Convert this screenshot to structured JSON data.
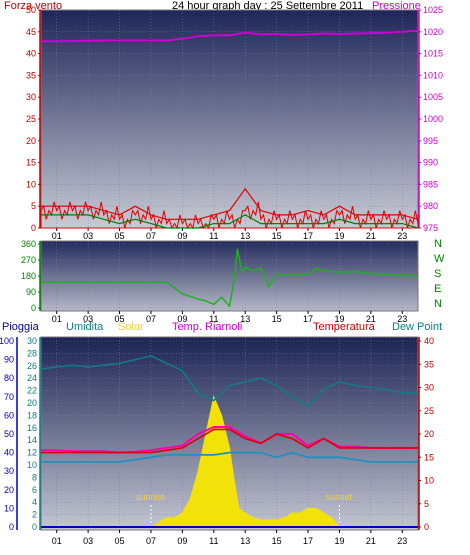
{
  "colors": {
    "frame": "#8a8f9a",
    "bg_top": "#232a5a",
    "bg_bottom": "#c9cbd4",
    "red_axis": "#c00000",
    "teal_axis": "#0a7e86",
    "magenta": "#d000d0",
    "wind_avg": "#e00000",
    "gust": "#008000",
    "direction": "#20b020",
    "humidity": "#127a86",
    "solar": "#f2e20a",
    "temp": "#e00000",
    "dewpoint": "#2090c0",
    "riarnoli": "#ff00aa",
    "rain": "#0000c0",
    "sunrise_label": "#f0d040"
  },
  "top_panel": {
    "left_label": "Forza vento",
    "title": "24 hour graph day : 25 Settembre 2011",
    "right_label": "Pressione"
  },
  "direction_panel": {
    "compass": [
      "N",
      "W",
      "S",
      "E",
      "N"
    ]
  },
  "bottom_panel": {
    "labels": {
      "rain": "Pioggia",
      "humidity": "Umidita",
      "solar": "Solar",
      "riarnoli": "Temp. Riarnoli",
      "temperature": "Temperatura",
      "dewpoint": "Dew Point"
    },
    "sunrise": "sunrise",
    "sunset": "sunset"
  },
  "chart_data": [
    {
      "type": "line",
      "title": "24 hour graph day : 25 Settembre 2011",
      "x_ticks": [
        "01",
        "03",
        "05",
        "07",
        "09",
        "11",
        "13",
        "15",
        "17",
        "19",
        "21",
        "23"
      ],
      "xlim": [
        0,
        24
      ],
      "left_axis": {
        "label": "Forza vento",
        "ticks": [
          0,
          5,
          10,
          15,
          20,
          25,
          30,
          35,
          40,
          45,
          50
        ],
        "lim": [
          0,
          50
        ]
      },
      "right_axis": {
        "label": "Pressione",
        "ticks": [
          975,
          980,
          985,
          990,
          995,
          1000,
          1005,
          1010,
          1015,
          1020,
          1025
        ],
        "lim": [
          975,
          1025
        ]
      },
      "series": [
        {
          "name": "Pressione",
          "axis": "right",
          "x": [
            0,
            2,
            4,
            6,
            8,
            9,
            10,
            11,
            12,
            13,
            14,
            15,
            16,
            17,
            18,
            19,
            20,
            21,
            22,
            23,
            24
          ],
          "values": [
            1017.8,
            1017.9,
            1018.0,
            1018.0,
            1018.0,
            1018.4,
            1019.0,
            1019.2,
            1019.2,
            1019.8,
            1019.4,
            1019.5,
            1019.3,
            1019.4,
            1019.6,
            1019.5,
            1019.6,
            1019.7,
            1019.8,
            1020.0,
            1020.3
          ]
        },
        {
          "x": [
            0,
            1,
            2,
            3,
            4,
            5,
            6,
            7,
            8,
            9,
            10,
            11,
            12,
            13,
            14,
            15,
            16,
            17,
            18,
            19,
            20,
            21,
            22,
            23,
            24
          ],
          "values": [
            4,
            4,
            4,
            4,
            3,
            2,
            3,
            2,
            1,
            1,
            1,
            2,
            2,
            4,
            2,
            2,
            2,
            2,
            2,
            3,
            2,
            2,
            2,
            2,
            1
          ]
        },
        {
          "x": [
            0,
            1,
            2,
            3,
            4,
            5,
            6,
            7,
            8,
            9,
            10,
            11,
            12,
            13,
            14,
            15,
            16,
            17,
            18,
            19,
            20,
            21,
            22,
            23,
            24
          ],
          "values": [
            5,
            5,
            5,
            5,
            4,
            3,
            5,
            3,
            2,
            2,
            2,
            3,
            4,
            9,
            4,
            3,
            3,
            4,
            3,
            5,
            3,
            3,
            3,
            3,
            2
          ]
        }
      ]
    },
    {
      "type": "line",
      "x_ticks": [
        "01",
        "03",
        "05",
        "07",
        "09",
        "11",
        "13",
        "15",
        "17",
        "19",
        "21",
        "23"
      ],
      "xlim": [
        0,
        24
      ],
      "left_axis": {
        "ticks": [
          0,
          90,
          180,
          270,
          360
        ],
        "lim": [
          0,
          360
        ]
      },
      "right_axis": {
        "ticks": [
          "N",
          "W",
          "S",
          "E",
          "N"
        ]
      },
      "series": [
        {
          "x": [
            0,
            2,
            4,
            6,
            7,
            8,
            9,
            10,
            10.5,
            11,
            11.5,
            12,
            12.3,
            12.5,
            12.8,
            13,
            13.5,
            14,
            14.5,
            15,
            16,
            17,
            17.5,
            18,
            19,
            20,
            21,
            22,
            23,
            24
          ],
          "values": [
            145,
            145,
            145,
            145,
            145,
            145,
            80,
            50,
            40,
            20,
            60,
            10,
            160,
            330,
            200,
            230,
            210,
            225,
            120,
            190,
            185,
            190,
            220,
            210,
            200,
            205,
            195,
            190,
            185,
            180
          ]
        }
      ]
    },
    {
      "type": "line",
      "x_ticks": [
        "01",
        "03",
        "05",
        "07",
        "09",
        "11",
        "13",
        "15",
        "17",
        "19",
        "21",
        "23"
      ],
      "xlim": [
        0,
        24
      ],
      "axes": {
        "rain": {
          "label": "Pioggia",
          "ticks": [
            0,
            10,
            20,
            30,
            40,
            50,
            60,
            70,
            80,
            90,
            100
          ],
          "lim": [
            0,
            100
          ]
        },
        "humidity": {
          "label": "Umidita",
          "ticks": [
            0,
            2,
            4,
            6,
            8,
            10,
            12,
            14,
            16,
            18,
            20,
            22,
            24,
            26,
            28,
            30
          ],
          "lim": [
            0,
            30
          ]
        },
        "temperature": {
          "label": "Temperatura",
          "ticks": [
            0,
            5,
            10,
            15,
            20,
            25,
            30,
            35,
            40
          ],
          "lim": [
            0,
            40
          ]
        }
      },
      "series": [
        {
          "name": "Umidita",
          "x": [
            0,
            1,
            2,
            3,
            4,
            5,
            6,
            7,
            8,
            9,
            10,
            11,
            12,
            13,
            14,
            15,
            16,
            17,
            18,
            19,
            20,
            21,
            22,
            23,
            24
          ],
          "values": [
            85,
            86,
            87,
            86,
            87,
            88,
            90,
            92,
            88,
            84,
            72,
            68,
            76,
            78,
            80,
            76,
            70,
            65,
            74,
            78,
            76,
            75,
            74,
            72,
            72
          ]
        },
        {
          "name": "Temperatura",
          "x": [
            0,
            1,
            2,
            3,
            4,
            5,
            6,
            7,
            8,
            9,
            10,
            11,
            12,
            13,
            14,
            15,
            16,
            17,
            18,
            19,
            20,
            21,
            22,
            23,
            24
          ],
          "values": [
            16,
            16,
            16,
            16,
            16,
            16,
            16,
            16,
            16.5,
            17,
            19,
            21,
            21,
            19,
            18,
            20,
            19,
            17,
            19,
            17,
            17,
            17,
            17,
            17,
            17
          ]
        },
        {
          "name": "Temp. Riarnoli",
          "x": [
            0,
            1,
            2,
            3,
            4,
            5,
            6,
            7,
            8,
            9,
            10,
            11,
            12,
            13,
            14,
            15,
            16,
            17,
            18,
            19,
            20,
            21,
            22,
            23,
            24
          ],
          "values": [
            16.5,
            16.5,
            16.3,
            16.3,
            16.3,
            16,
            16.2,
            16.5,
            17,
            17.5,
            20,
            21.5,
            21.5,
            19.5,
            18,
            20,
            20,
            17.5,
            19,
            17.3,
            17.3,
            17,
            17,
            17,
            17
          ]
        },
        {
          "name": "Dew Point",
          "x": [
            0,
            1,
            2,
            3,
            4,
            5,
            6,
            7,
            8,
            9,
            10,
            11,
            12,
            13,
            14,
            15,
            16,
            17,
            18,
            19,
            20,
            21,
            22,
            23,
            24
          ],
          "values": [
            14,
            14,
            14,
            14,
            14,
            14,
            14.5,
            15,
            15.5,
            15.5,
            15.5,
            15.5,
            16,
            16,
            16,
            15,
            16,
            15,
            15,
            15,
            14.5,
            14,
            14,
            14,
            14
          ]
        },
        {
          "name": "Solar",
          "x": [
            7,
            7.5,
            8,
            8.5,
            9,
            9.5,
            10,
            10.5,
            11,
            11.5,
            12,
            12.3,
            12.6,
            13,
            13.5,
            14,
            14.5,
            15,
            15.5,
            16,
            16.5,
            17,
            17.5,
            18,
            18.5,
            19
          ],
          "values": [
            0,
            1,
            2,
            2,
            3,
            6,
            12,
            20,
            28,
            24,
            17,
            10,
            4,
            3,
            2,
            1.5,
            1.5,
            1.5,
            2,
            3,
            3,
            4,
            4,
            3,
            2,
            0
          ]
        },
        {
          "name": "Pioggia",
          "x": [
            0,
            24
          ],
          "values": [
            0,
            0
          ]
        }
      ],
      "annotations": [
        "sunrise",
        "sunset"
      ]
    }
  ]
}
